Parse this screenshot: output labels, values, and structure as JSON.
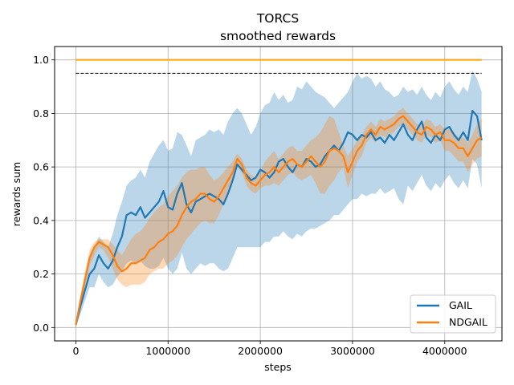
{
  "chart_data": {
    "type": "line",
    "title": "TORCS",
    "subtitle": "smoothed rewards",
    "xlabel": "steps",
    "ylabel": "rewards sum",
    "xlim": [
      -230000,
      4620000
    ],
    "ylim": [
      -0.05,
      1.05
    ],
    "x_ticks": [
      0,
      1000000,
      2000000,
      3000000,
      4000000
    ],
    "x_tick_labels": [
      "0",
      "1000000",
      "2000000",
      "3000000",
      "4000000"
    ],
    "y_ticks": [
      0.0,
      0.2,
      0.4,
      0.6,
      0.8,
      1.0
    ],
    "y_tick_labels": [
      "0.0",
      "0.2",
      "0.4",
      "0.6",
      "0.8",
      "1.0"
    ],
    "grid": true,
    "legend": {
      "position": "lower-right",
      "entries": [
        "GAIL",
        "NDGAIL"
      ]
    },
    "reference_lines": [
      {
        "y": 1.0,
        "color": "#ffa500",
        "style": "solid",
        "x_range": [
          0,
          4400000
        ]
      },
      {
        "y": 0.95,
        "color": "#000000",
        "style": "dashed",
        "x_range": [
          0,
          4400000
        ]
      }
    ],
    "series": [
      {
        "name": "GAIL",
        "color": "#1f77b4",
        "band_color": "#1f77b4",
        "x": [
          0,
          50000,
          100000,
          150000,
          200000,
          250000,
          300000,
          350000,
          400000,
          450000,
          500000,
          550000,
          600000,
          650000,
          700000,
          750000,
          800000,
          850000,
          900000,
          950000,
          1000000,
          1050000,
          1100000,
          1150000,
          1200000,
          1250000,
          1300000,
          1350000,
          1400000,
          1450000,
          1500000,
          1550000,
          1600000,
          1650000,
          1700000,
          1750000,
          1800000,
          1850000,
          1900000,
          1950000,
          2000000,
          2050000,
          2100000,
          2150000,
          2200000,
          2250000,
          2300000,
          2350000,
          2400000,
          2450000,
          2500000,
          2550000,
          2600000,
          2650000,
          2700000,
          2750000,
          2800000,
          2850000,
          2900000,
          2950000,
          3000000,
          3050000,
          3100000,
          3150000,
          3200000,
          3250000,
          3300000,
          3350000,
          3400000,
          3450000,
          3500000,
          3550000,
          3600000,
          3650000,
          3700000,
          3750000,
          3800000,
          3850000,
          3900000,
          3950000,
          4000000,
          4050000,
          4100000,
          4150000,
          4200000,
          4250000,
          4300000,
          4350000,
          4400000
        ],
        "values": [
          0.01,
          0.08,
          0.14,
          0.2,
          0.22,
          0.27,
          0.24,
          0.22,
          0.25,
          0.3,
          0.34,
          0.42,
          0.43,
          0.42,
          0.45,
          0.41,
          0.43,
          0.45,
          0.47,
          0.51,
          0.45,
          0.44,
          0.5,
          0.54,
          0.46,
          0.43,
          0.47,
          0.48,
          0.49,
          0.5,
          0.49,
          0.48,
          0.46,
          0.5,
          0.55,
          0.61,
          0.59,
          0.57,
          0.55,
          0.56,
          0.59,
          0.58,
          0.56,
          0.58,
          0.62,
          0.63,
          0.6,
          0.58,
          0.61,
          0.6,
          0.63,
          0.62,
          0.6,
          0.61,
          0.64,
          0.66,
          0.68,
          0.66,
          0.69,
          0.73,
          0.72,
          0.7,
          0.72,
          0.71,
          0.73,
          0.7,
          0.71,
          0.69,
          0.72,
          0.7,
          0.73,
          0.76,
          0.72,
          0.7,
          0.74,
          0.77,
          0.71,
          0.69,
          0.72,
          0.7,
          0.74,
          0.75,
          0.72,
          0.7,
          0.73,
          0.7,
          0.81,
          0.79,
          0.7
        ],
        "upper": [
          0.02,
          0.11,
          0.18,
          0.25,
          0.3,
          0.34,
          0.32,
          0.3,
          0.35,
          0.42,
          0.47,
          0.53,
          0.55,
          0.56,
          0.59,
          0.56,
          0.62,
          0.65,
          0.68,
          0.7,
          0.66,
          0.67,
          0.73,
          0.72,
          0.68,
          0.64,
          0.7,
          0.71,
          0.72,
          0.74,
          0.73,
          0.74,
          0.72,
          0.77,
          0.8,
          0.82,
          0.8,
          0.76,
          0.72,
          0.75,
          0.8,
          0.83,
          0.84,
          0.88,
          0.85,
          0.87,
          0.84,
          0.85,
          0.9,
          0.89,
          0.92,
          0.9,
          0.88,
          0.87,
          0.86,
          0.84,
          0.82,
          0.84,
          0.86,
          0.88,
          0.92,
          0.95,
          0.93,
          0.94,
          0.93,
          0.9,
          0.92,
          0.89,
          0.88,
          0.86,
          0.87,
          0.9,
          0.88,
          0.89,
          0.87,
          0.9,
          0.87,
          0.85,
          0.88,
          0.86,
          0.9,
          0.92,
          0.89,
          0.87,
          0.9,
          0.88,
          0.96,
          0.93,
          0.88
        ],
        "lower": [
          0.0,
          0.05,
          0.1,
          0.15,
          0.15,
          0.2,
          0.17,
          0.15,
          0.16,
          0.19,
          0.21,
          0.24,
          0.25,
          0.24,
          0.25,
          0.23,
          0.22,
          0.22,
          0.23,
          0.26,
          0.22,
          0.2,
          0.22,
          0.28,
          0.22,
          0.2,
          0.22,
          0.24,
          0.23,
          0.24,
          0.24,
          0.22,
          0.21,
          0.22,
          0.26,
          0.3,
          0.3,
          0.3,
          0.3,
          0.3,
          0.3,
          0.32,
          0.32,
          0.34,
          0.34,
          0.36,
          0.34,
          0.33,
          0.35,
          0.34,
          0.36,
          0.37,
          0.37,
          0.38,
          0.39,
          0.4,
          0.42,
          0.42,
          0.44,
          0.46,
          0.48,
          0.48,
          0.5,
          0.49,
          0.5,
          0.5,
          0.52,
          0.5,
          0.51,
          0.52,
          0.48,
          0.46,
          0.53,
          0.51,
          0.54,
          0.57,
          0.53,
          0.51,
          0.54,
          0.52,
          0.55,
          0.57,
          0.54,
          0.52,
          0.55,
          0.52,
          0.63,
          0.61,
          0.52
        ]
      },
      {
        "name": "NDGAIL",
        "color": "#ff7f0e",
        "band_color": "#ff7f0e",
        "x": [
          0,
          50000,
          100000,
          150000,
          200000,
          250000,
          300000,
          350000,
          400000,
          450000,
          500000,
          550000,
          600000,
          650000,
          700000,
          750000,
          800000,
          850000,
          900000,
          950000,
          1000000,
          1050000,
          1100000,
          1150000,
          1200000,
          1250000,
          1300000,
          1350000,
          1400000,
          1450000,
          1500000,
          1550000,
          1600000,
          1650000,
          1700000,
          1750000,
          1800000,
          1850000,
          1900000,
          1950000,
          2000000,
          2050000,
          2100000,
          2150000,
          2200000,
          2250000,
          2300000,
          2350000,
          2400000,
          2450000,
          2500000,
          2550000,
          2600000,
          2650000,
          2700000,
          2750000,
          2800000,
          2850000,
          2900000,
          2950000,
          3000000,
          3050000,
          3100000,
          3150000,
          3200000,
          3250000,
          3300000,
          3350000,
          3400000,
          3450000,
          3500000,
          3550000,
          3600000,
          3650000,
          3700000,
          3750000,
          3800000,
          3850000,
          3900000,
          3950000,
          4000000,
          4050000,
          4100000,
          4150000,
          4200000,
          4250000,
          4300000,
          4350000,
          4400000
        ],
        "values": [
          0.01,
          0.1,
          0.18,
          0.26,
          0.3,
          0.32,
          0.31,
          0.3,
          0.27,
          0.23,
          0.21,
          0.22,
          0.24,
          0.24,
          0.25,
          0.26,
          0.29,
          0.3,
          0.32,
          0.33,
          0.35,
          0.36,
          0.38,
          0.42,
          0.45,
          0.47,
          0.48,
          0.5,
          0.5,
          0.48,
          0.47,
          0.49,
          0.52,
          0.55,
          0.58,
          0.63,
          0.61,
          0.56,
          0.54,
          0.53,
          0.55,
          0.57,
          0.58,
          0.6,
          0.58,
          0.6,
          0.62,
          0.63,
          0.61,
          0.6,
          0.62,
          0.64,
          0.62,
          0.6,
          0.62,
          0.66,
          0.67,
          0.66,
          0.64,
          0.58,
          0.62,
          0.66,
          0.68,
          0.72,
          0.74,
          0.72,
          0.75,
          0.74,
          0.75,
          0.76,
          0.78,
          0.79,
          0.77,
          0.75,
          0.73,
          0.72,
          0.75,
          0.74,
          0.72,
          0.73,
          0.7,
          0.7,
          0.69,
          0.67,
          0.67,
          0.64,
          0.67,
          0.7,
          0.71
        ],
        "upper": [
          0.02,
          0.12,
          0.21,
          0.29,
          0.32,
          0.33,
          0.33,
          0.33,
          0.31,
          0.29,
          0.27,
          0.3,
          0.33,
          0.35,
          0.36,
          0.38,
          0.41,
          0.43,
          0.45,
          0.46,
          0.49,
          0.51,
          0.53,
          0.56,
          0.58,
          0.59,
          0.59,
          0.6,
          0.6,
          0.57,
          0.55,
          0.56,
          0.58,
          0.6,
          0.62,
          0.65,
          0.63,
          0.59,
          0.57,
          0.56,
          0.58,
          0.62,
          0.64,
          0.66,
          0.63,
          0.65,
          0.67,
          0.68,
          0.66,
          0.66,
          0.68,
          0.7,
          0.71,
          0.73,
          0.76,
          0.79,
          0.78,
          0.73,
          0.68,
          0.64,
          0.67,
          0.7,
          0.72,
          0.75,
          0.77,
          0.75,
          0.78,
          0.77,
          0.78,
          0.79,
          0.81,
          0.82,
          0.8,
          0.78,
          0.76,
          0.75,
          0.78,
          0.77,
          0.75,
          0.76,
          0.74,
          0.74,
          0.73,
          0.71,
          0.71,
          0.69,
          0.72,
          0.76,
          0.78
        ],
        "lower": [
          0.0,
          0.08,
          0.15,
          0.23,
          0.27,
          0.3,
          0.29,
          0.26,
          0.22,
          0.18,
          0.16,
          0.15,
          0.16,
          0.16,
          0.16,
          0.17,
          0.2,
          0.21,
          0.22,
          0.22,
          0.24,
          0.25,
          0.27,
          0.3,
          0.33,
          0.35,
          0.37,
          0.39,
          0.4,
          0.39,
          0.39,
          0.42,
          0.46,
          0.5,
          0.54,
          0.6,
          0.58,
          0.53,
          0.51,
          0.5,
          0.52,
          0.53,
          0.53,
          0.54,
          0.53,
          0.55,
          0.57,
          0.58,
          0.56,
          0.55,
          0.56,
          0.57,
          0.54,
          0.5,
          0.5,
          0.53,
          0.55,
          0.58,
          0.6,
          0.52,
          0.57,
          0.62,
          0.64,
          0.69,
          0.71,
          0.69,
          0.72,
          0.71,
          0.72,
          0.73,
          0.75,
          0.76,
          0.74,
          0.72,
          0.7,
          0.69,
          0.72,
          0.71,
          0.69,
          0.7,
          0.66,
          0.66,
          0.64,
          0.62,
          0.62,
          0.58,
          0.61,
          0.63,
          0.64
        ]
      }
    ]
  }
}
